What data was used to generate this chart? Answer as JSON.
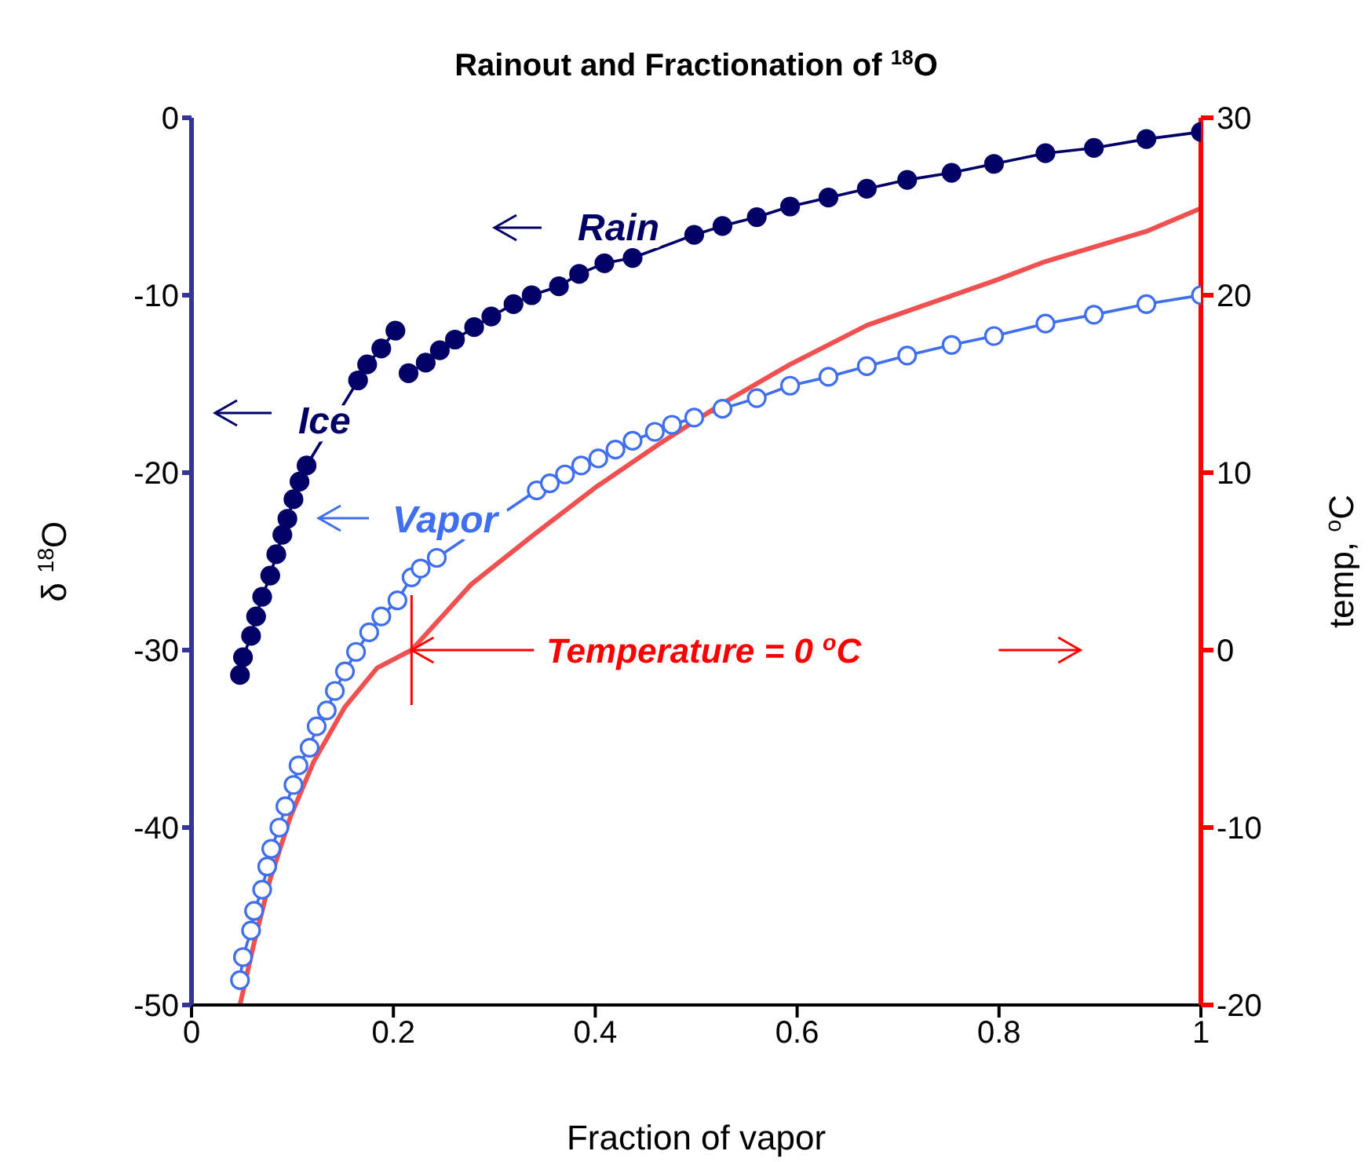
{
  "chart_data": {
    "type": "line",
    "title": "Rainout and Fractionation of $^{18}$O",
    "xlabel": "Fraction of vapor",
    "ylabel": "δ $^{18}$O",
    "y2label": "temp, $^{o}$C",
    "xlim": [
      0,
      1
    ],
    "xticks": [
      0,
      0.2,
      0.4,
      0.6,
      0.8,
      1
    ],
    "ylim": [
      -50,
      0
    ],
    "yticks": [
      -50,
      -40,
      -30,
      -20,
      -10,
      0
    ],
    "y2lim": [
      -20,
      30
    ],
    "y2ticks": [
      -20,
      -10,
      0,
      10,
      20,
      30
    ],
    "grid": false,
    "legend": "top left",
    "annotations": [
      {
        "text": "Temperature = 0 $^{o}$C",
        "x": 0.218,
        "y": -30
      }
    ],
    "series": [
      {
        "name": "Ice",
        "color": "#000066",
        "marker": "circle",
        "x": [
          0.048,
          0.051,
          0.059,
          0.064,
          0.07,
          0.078,
          0.084,
          0.09,
          0.095,
          0.101,
          0.107,
          0.114,
          0.165,
          0.174,
          0.188,
          0.202
        ],
        "values": [
          -31.4,
          -30.4,
          -29.2,
          -28.1,
          -27.0,
          -25.8,
          -24.6,
          -23.5,
          -22.6,
          -21.5,
          -20.5,
          -19.6,
          -14.8,
          -13.9,
          -13.0,
          -12.0
        ]
      },
      {
        "name": "Rain",
        "color": "#000066",
        "marker": "circle",
        "x": [
          0.215,
          0.232,
          0.246,
          0.261,
          0.28,
          0.297,
          0.319,
          0.337,
          0.364,
          0.384,
          0.409,
          0.437,
          0.498,
          0.526,
          0.56,
          0.593,
          0.631,
          0.669,
          0.709,
          0.753,
          0.795,
          0.846,
          0.894,
          0.946,
          1.0
        ],
        "values": [
          -14.4,
          -13.8,
          -13.1,
          -12.5,
          -11.8,
          -11.2,
          -10.5,
          -10.0,
          -9.5,
          -8.8,
          -8.2,
          -7.9,
          -6.6,
          -6.1,
          -5.6,
          -5.0,
          -4.5,
          -4.0,
          -3.5,
          -3.1,
          -2.6,
          -2.0,
          -1.7,
          -1.2,
          -0.8
        ]
      },
      {
        "name": "Vapor",
        "color": "#3f6fef",
        "marker": "circle",
        "x": [
          0.048,
          0.051,
          0.059,
          0.062,
          0.07,
          0.075,
          0.079,
          0.087,
          0.093,
          0.101,
          0.106,
          0.117,
          0.124,
          0.134,
          0.142,
          0.152,
          0.163,
          0.176,
          0.188,
          0.204,
          0.218,
          0.227,
          0.243,
          0.342,
          0.355,
          0.37,
          0.386,
          0.403,
          0.42,
          0.437,
          0.459,
          0.476,
          0.498,
          0.526,
          0.56,
          0.593,
          0.631,
          0.669,
          0.709,
          0.753,
          0.795,
          0.846,
          0.894,
          0.946,
          1.0
        ],
        "values": [
          -48.6,
          -47.3,
          -45.8,
          -44.7,
          -43.5,
          -42.2,
          -41.2,
          -40.0,
          -38.8,
          -37.6,
          -36.5,
          -35.5,
          -34.3,
          -33.4,
          -32.3,
          -31.2,
          -30.1,
          -29.0,
          -28.1,
          -27.2,
          -25.9,
          -25.4,
          -24.8,
          -21.0,
          -20.6,
          -20.1,
          -19.6,
          -19.2,
          -18.7,
          -18.2,
          -17.7,
          -17.3,
          -16.9,
          -16.4,
          -15.8,
          -15.1,
          -14.6,
          -14.0,
          -13.4,
          -12.8,
          -12.3,
          -11.6,
          -11.1,
          -10.5,
          -10.0
        ]
      },
      {
        "color": "#f05050",
        "axis": "y2",
        "marker": "none",
        "x": [
          0.048,
          0.062,
          0.078,
          0.098,
          0.121,
          0.152,
          0.184,
          0.218,
          0.277,
          0.339,
          0.401,
          0.463,
          0.526,
          0.593,
          0.669,
          0.709,
          0.795,
          0.846,
          0.946,
          1.0
        ],
        "values": [
          -20.0,
          -16.5,
          -12.9,
          -9.4,
          -6.3,
          -3.2,
          -1.0,
          0,
          3.7,
          6.5,
          9.2,
          11.6,
          13.9,
          16.1,
          18.3,
          19.1,
          20.8,
          21.9,
          23.6,
          24.9
        ]
      }
    ]
  }
}
